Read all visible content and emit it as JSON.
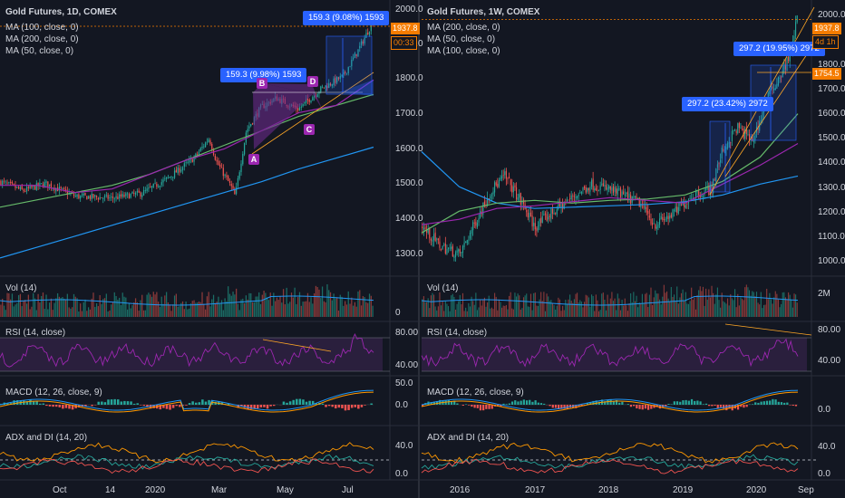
{
  "left": {
    "title": "Gold Futures, 1D, COMEX",
    "ma_lines": [
      {
        "label": "MA (100, close, 0)",
        "color": "#66bb6a"
      },
      {
        "label": "MA (200, close, 0)",
        "color": "#2196f3"
      },
      {
        "label": "MA (50, close, 0)",
        "color": "#9c27b0"
      }
    ],
    "price_ticks": [
      "2000.0",
      "1900.0",
      "1800.0",
      "1700.0",
      "1600.0",
      "1500.0",
      "1400.0",
      "1300.0"
    ],
    "last_price": "1937.8",
    "countdown": "00:33",
    "pattern_points": [
      "A",
      "B",
      "C",
      "D"
    ],
    "callout_top": "159.3 (9.08%) 1593",
    "callout_mid": "159.3 (9.98%) 1593",
    "vol_label": "Vol (14)",
    "vol_ticks": [
      "0"
    ],
    "rsi_label": "RSI (14, close)",
    "rsi_ticks": [
      "80.00",
      "40.00"
    ],
    "macd_label": "MACD (12, 26, close, 9)",
    "macd_ticks": [
      "50.0",
      "0.0"
    ],
    "adx_label": "ADX and DI (14, 20)",
    "adx_ticks": [
      "40.0",
      "0.0"
    ],
    "x_ticks": [
      "Oct",
      "14",
      "2020",
      "Mar",
      "May",
      "Jul"
    ]
  },
  "right": {
    "title": "Gold Futures, 1W, COMEX",
    "ma_lines": [
      {
        "label": "MA (200, close, 0)",
        "color": "#2196f3"
      },
      {
        "label": "MA (50, close, 0)",
        "color": "#66bb6a"
      },
      {
        "label": "MA (100, close, 0)",
        "color": "#9c27b0"
      }
    ],
    "price_ticks": [
      "2000.0",
      "1900.0",
      "1800.0",
      "1700.0",
      "1600.0",
      "1500.0",
      "1400.0",
      "1300.0",
      "1200.0",
      "1100.0",
      "1000.0"
    ],
    "last_price": "1937.8",
    "countdown": "4d 1h",
    "level_price": "1754.5",
    "callout_top": "297.2 (19.95%) 2972",
    "callout_mid": "297.2 (23.42%) 2972",
    "vol_label": "Vol (14)",
    "vol_ticks": [
      "2M"
    ],
    "rsi_label": "RSI (14, close)",
    "rsi_ticks": [
      "80.00",
      "40.00"
    ],
    "macd_label": "MACD (12, 26, close, 9)",
    "macd_ticks": [
      "0.0"
    ],
    "adx_label": "ADX and DI (14, 20)",
    "adx_ticks": [
      "40.0",
      "0.0"
    ],
    "x_ticks": [
      "2016",
      "2017",
      "2018",
      "2019",
      "2020",
      "Sep"
    ]
  },
  "colors": {
    "bg": "#131722",
    "up": "#26a69a",
    "down": "#ef5350",
    "last_price": "#f57c00",
    "rsi": "#9c27b0",
    "rsi_band": "#2a1f3d",
    "macd": "#2196f3",
    "signal": "#ff9800",
    "adx": "#ff9800",
    "di_plus": "#26a69a",
    "di_minus": "#ef5350",
    "callout": "#2962ff",
    "pattern_fill": "#6a2a8a",
    "trend": "#ffa726",
    "measure": "#2962ff"
  },
  "chart_data": [
    {
      "type": "candlestick",
      "title": "Gold Futures, 1D, COMEX",
      "x_tick_labels": [
        "Oct",
        "14",
        "2020",
        "Mar",
        "May",
        "Jul"
      ],
      "ylim": [
        1250,
        2010
      ],
      "key_closes": [
        {
          "x": "Sep",
          "y": 1510
        },
        {
          "x": "Oct",
          "y": 1505
        },
        {
          "x": "Nov",
          "y": 1465
        },
        {
          "x": "Dec",
          "y": 1480
        },
        {
          "x": "2020",
          "y": 1555
        },
        {
          "x": "Feb",
          "y": 1640
        },
        {
          "x": "Mar",
          "y": 1475
        },
        {
          "x": "Apr",
          "y": 1740
        },
        {
          "x": "May",
          "y": 1735
        },
        {
          "x": "Jun",
          "y": 1780
        },
        {
          "x": "Jul",
          "y": 1940
        }
      ],
      "series": [
        {
          "name": "MA (100, close, 0)",
          "values": [
            1440,
            1460,
            1480,
            1500,
            1530,
            1570,
            1610,
            1650,
            1690,
            1720,
            1750
          ]
        },
        {
          "name": "MA (200, close, 0)",
          "values": [
            1300,
            1330,
            1360,
            1390,
            1420,
            1450,
            1480,
            1510,
            1545,
            1575,
            1605
          ]
        },
        {
          "name": "MA (50, close, 0)",
          "values": [
            1500,
            1500,
            1480,
            1490,
            1530,
            1570,
            1600,
            1650,
            1700,
            1720,
            1790
          ]
        }
      ]
    },
    {
      "type": "candlestick",
      "title": "Gold Futures, 1W, COMEX",
      "x_tick_labels": [
        "2016",
        "2017",
        "2018",
        "2019",
        "2020",
        "Sep"
      ],
      "ylim": [
        990,
        2010
      ],
      "key_closes": [
        {
          "x": "2015-10",
          "y": 1170
        },
        {
          "x": "2016",
          "y": 1060
        },
        {
          "x": "2016-07",
          "y": 1360
        },
        {
          "x": "2017",
          "y": 1160
        },
        {
          "x": "2017-09",
          "y": 1340
        },
        {
          "x": "2018",
          "y": 1320
        },
        {
          "x": "2018-08",
          "y": 1180
        },
        {
          "x": "2019",
          "y": 1290
        },
        {
          "x": "2019-09",
          "y": 1560
        },
        {
          "x": "2020",
          "y": 1530
        },
        {
          "x": "2020-03",
          "y": 1480
        },
        {
          "x": "2020-07",
          "y": 1940
        }
      ],
      "series": [
        {
          "name": "MA (200, close, 0)",
          "values": [
            1450,
            1320,
            1260,
            1240,
            1245,
            1250,
            1255,
            1265,
            1290,
            1330,
            1360
          ]
        },
        {
          "name": "MA (50, close, 0)",
          "values": [
            1150,
            1230,
            1260,
            1270,
            1260,
            1270,
            1275,
            1290,
            1340,
            1430,
            1590
          ]
        },
        {
          "name": "MA (100, close, 0)",
          "values": [
            1180,
            1200,
            1240,
            1250,
            1265,
            1280,
            1270,
            1260,
            1330,
            1400,
            1480
          ]
        }
      ]
    }
  ]
}
